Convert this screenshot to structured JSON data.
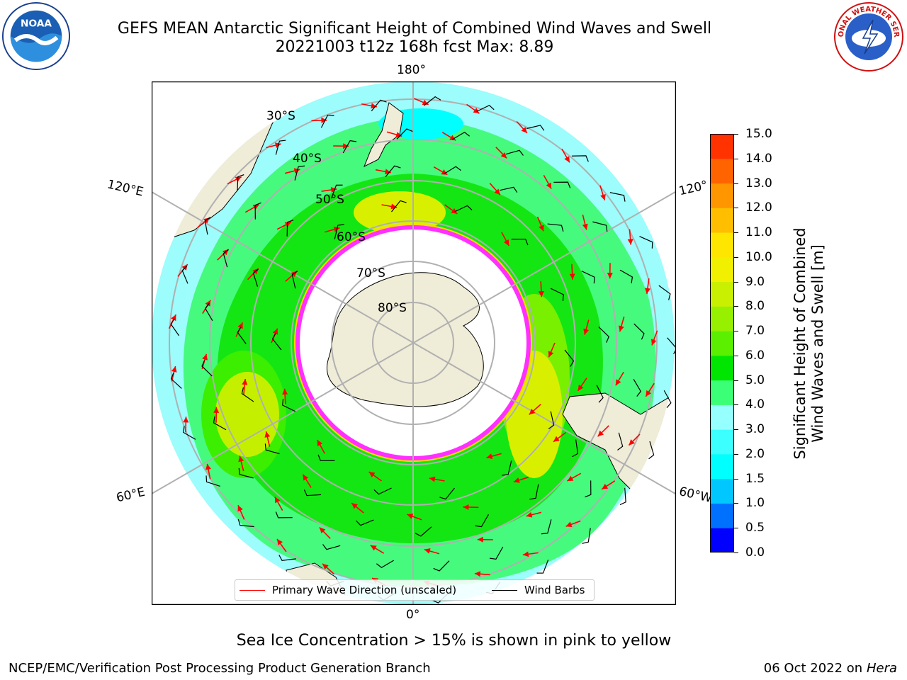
{
  "title": {
    "line1": "GEFS MEAN Antarctic Significant Height of Combined Wind Waves and Swell",
    "line2": "20221003 t12z 168h fcst   Max: 8.89"
  },
  "logos": {
    "left": "NOAA",
    "right": "NATIONAL WEATHER SERVICE"
  },
  "map": {
    "longitude_labels": [
      "180°",
      "120°E",
      "120°",
      "60°E",
      "60°W",
      "0°"
    ],
    "latitude_labels": [
      "30°S",
      "40°S",
      "50°S",
      "60°S",
      "70°S",
      "80°S"
    ]
  },
  "legend": {
    "wave_label": "Primary Wave Direction (unscaled)",
    "barb_label": "Wind Barbs",
    "wave_color": "#ff0000",
    "barb_color": "#000000"
  },
  "colorbar": {
    "title_line1": "Significant Height of Combined",
    "title_line2": "Wind Waves and Swell [m]",
    "ticks": [
      "0.0",
      "0.5",
      "1.0",
      "1.5",
      "2.0",
      "3.0",
      "4.0",
      "5.0",
      "6.0",
      "7.0",
      "8.0",
      "9.0",
      "10.0",
      "11.0",
      "12.0",
      "13.0",
      "14.0",
      "15.0"
    ],
    "colors": [
      "#0000ff",
      "#0070ff",
      "#00c8ff",
      "#00ffff",
      "#3cffff",
      "#96ffff",
      "#3cff78",
      "#00e600",
      "#5af000",
      "#96f000",
      "#c8f000",
      "#f0f000",
      "#ffe600",
      "#ffbe00",
      "#ff9600",
      "#ff6400",
      "#ff3200",
      "#ff0000"
    ]
  },
  "subtitle": "Sea Ice Concentration > 15% is shown in pink to yellow",
  "footer": {
    "left": "NCEP/EMC/Verification Post Processing Product Generation Branch",
    "date": "06 Oct 2022 on ",
    "machine": "Hera"
  }
}
